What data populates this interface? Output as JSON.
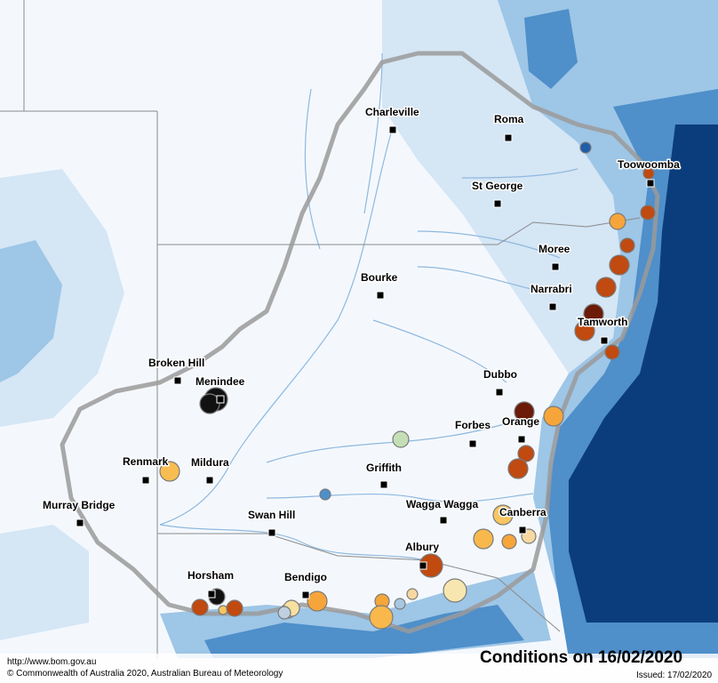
{
  "title": "Conditions on 16/02/2020",
  "footer": {
    "url": "http://www.bom.gov.au",
    "copyright": "© Commonwealth of Australia 2020, Australian Bureau of Meteorology",
    "issued": "Issued: 17/02/2020"
  },
  "colors": {
    "land": "#f4f8fd",
    "light_blue": "#d5e6f5",
    "mid_blue": "#9ec6e6",
    "blue": "#4f8fca",
    "dark_blue": "#0b3d7c",
    "river": "#8fb8de",
    "border": "#8a8a8a"
  },
  "towns": [
    {
      "name": "Charleville"
    },
    {
      "name": "Roma"
    },
    {
      "name": "Toowoomba"
    },
    {
      "name": "St George"
    },
    {
      "name": "Moree"
    },
    {
      "name": "Narrabri"
    },
    {
      "name": "Bourke"
    },
    {
      "name": "Tamworth"
    },
    {
      "name": "Broken Hill"
    },
    {
      "name": "Menindee"
    },
    {
      "name": "Dubbo"
    },
    {
      "name": "Orange"
    },
    {
      "name": "Forbes"
    },
    {
      "name": "Renmark"
    },
    {
      "name": "Mildura"
    },
    {
      "name": "Griffith"
    },
    {
      "name": "Murray Bridge"
    },
    {
      "name": "Wagga Wagga"
    },
    {
      "name": "Canberra"
    },
    {
      "name": "Swan Hill"
    },
    {
      "name": "Albury"
    },
    {
      "name": "Horsham"
    },
    {
      "name": "Bendigo"
    }
  ],
  "fire_markers": [
    {
      "fill": "#1f5ea8"
    },
    {
      "fill": "#c04a10"
    },
    {
      "fill": "#f6a53a"
    },
    {
      "fill": "#c04a10"
    },
    {
      "fill": "#c04a10"
    },
    {
      "fill": "#c04a10"
    },
    {
      "fill": "#c04a10"
    },
    {
      "fill": "#6b1b08"
    },
    {
      "fill": "#c04a10"
    },
    {
      "fill": "#c04a10"
    },
    {
      "fill": "#111111"
    },
    {
      "fill": "#111111"
    },
    {
      "fill": "#6b1b08"
    },
    {
      "fill": "#f6a53a"
    },
    {
      "fill": "#c04a10"
    },
    {
      "fill": "#c04a10"
    },
    {
      "fill": "#c4dfb5"
    },
    {
      "fill": "#f8bd50"
    },
    {
      "fill": "#4f8fca"
    },
    {
      "fill": "#f8c560"
    },
    {
      "fill": "#f8b84c"
    },
    {
      "fill": "#f6a53a"
    },
    {
      "fill": "#f6d8a0"
    },
    {
      "fill": "#c04a10"
    },
    {
      "fill": "#f8e6b0"
    },
    {
      "fill": "#f6d8a0"
    },
    {
      "fill": "#f6a53a"
    },
    {
      "fill": "#f8b84c"
    },
    {
      "fill": "#a8c8e0"
    },
    {
      "fill": "#c2d4e4"
    },
    {
      "fill": "#f6a53a"
    },
    {
      "fill": "#f8e0a0"
    },
    {
      "fill": "#c0d0e0"
    },
    {
      "fill": "#111111"
    },
    {
      "fill": "#c04a10"
    },
    {
      "fill": "#f8c560"
    },
    {
      "fill": "#c04a10"
    }
  ]
}
